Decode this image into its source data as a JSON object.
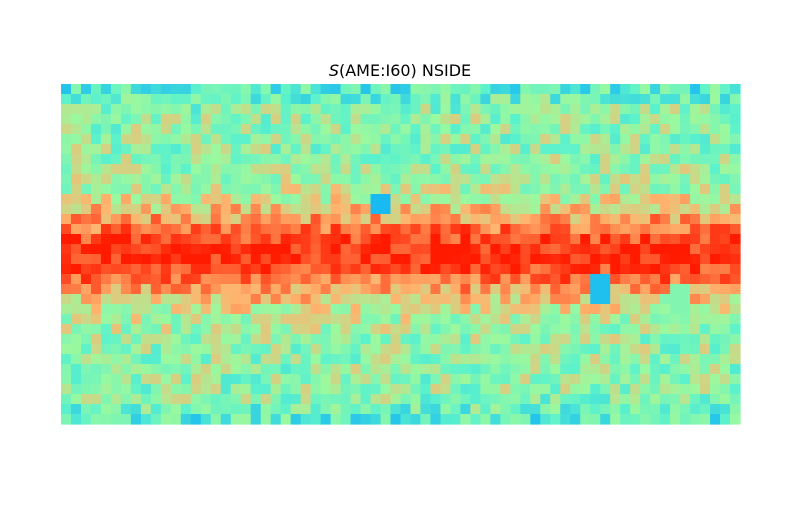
{
  "chart_data": {
    "type": "heatmap",
    "subtype": "healpix-map-cartesian-projection",
    "title_symbol": "S",
    "title_rest": "(AME:I60) NSIDE",
    "xlabel": "",
    "ylabel": "",
    "colormap": "rainbow",
    "value_range": [
      0,
      1
    ],
    "colors": {
      "low": "#00a6ff",
      "mid_low": "#5cf2cc",
      "mid": "#9bf89e",
      "mid_high": "#ffb46e",
      "high": "#ff1a00"
    },
    "grid": "none",
    "description_grid": {
      "rows": 34,
      "cols": 68
    },
    "field": {
      "galactic_plane_row_fraction": 0.5,
      "plane_peak": 0.97,
      "plane_width_fraction": 0.1,
      "background_level": 0.45,
      "low_spots": [
        {
          "lon_frac": 0.47,
          "lat_frac": 0.35,
          "value": 0.08
        },
        {
          "lon_frac": 0.795,
          "lat_frac": 0.605,
          "value": 0.1
        },
        {
          "lon_frac": 0.16,
          "lat_frac": 0.22,
          "value": 0.4
        },
        {
          "lon_frac": 0.91,
          "lat_frac": 0.635,
          "value": 0.42
        }
      ]
    }
  }
}
